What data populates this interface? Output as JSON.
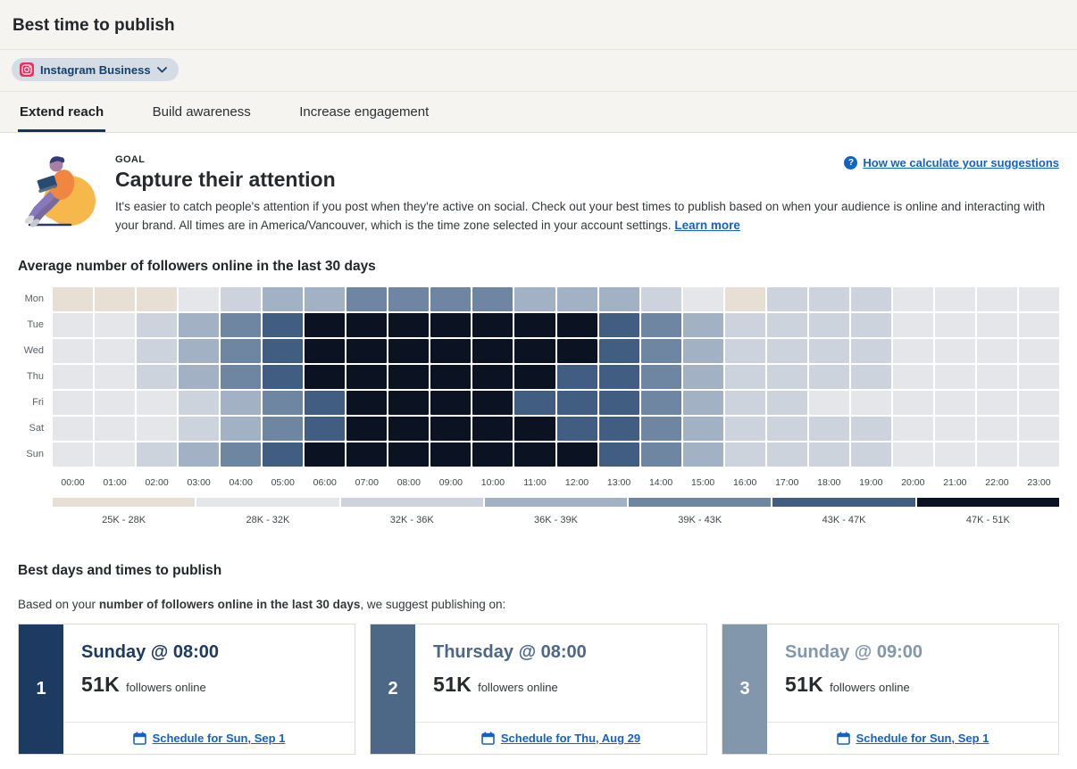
{
  "header": {
    "title": "Best time to publish"
  },
  "account_selector": {
    "label": "Instagram Business",
    "icon": "instagram-icon"
  },
  "tabs": [
    {
      "label": "Extend reach",
      "active": true
    },
    {
      "label": "Build awareness",
      "active": false
    },
    {
      "label": "Increase engagement",
      "active": false
    }
  ],
  "goal": {
    "eyebrow": "GOAL",
    "title": "Capture their attention",
    "description": "It's easier to catch people's attention if you post when they're active on social. Check out your best times to publish based on when your audience is online and interacting with your brand. All times are in America/Vancouver, which is the time zone selected in your account settings.",
    "learn_more_label": "Learn more",
    "help_link_label": "How we calculate your suggestions"
  },
  "chart_data": {
    "type": "heatmap",
    "title": "Average number of followers online in the last 30 days",
    "x_labels": [
      "00:00",
      "01:00",
      "02:00",
      "03:00",
      "04:00",
      "05:00",
      "06:00",
      "07:00",
      "08:00",
      "09:00",
      "10:00",
      "11:00",
      "12:00",
      "13:00",
      "14:00",
      "15:00",
      "16:00",
      "17:00",
      "18:00",
      "19:00",
      "20:00",
      "21:00",
      "22:00",
      "23:00"
    ],
    "y_labels": [
      "Mon",
      "Tue",
      "Wed",
      "Thu",
      "Fri",
      "Sat",
      "Sun"
    ],
    "legend_bins": [
      {
        "label": "25K - 28K",
        "color": "#e7dfd3"
      },
      {
        "label": "28K - 32K",
        "color": "#e4e6ea"
      },
      {
        "label": "32K - 36K",
        "color": "#ccd3dd"
      },
      {
        "label": "36K - 39K",
        "color": "#a2b1c4"
      },
      {
        "label": "39K - 43K",
        "color": "#6e86a2"
      },
      {
        "label": "43K - 47K",
        "color": "#415e82"
      },
      {
        "label": "47K - 51K",
        "color": "#0b1322"
      }
    ],
    "levels_note": "values are 1-7 bin indices into legend_bins, one row per day Mon-Sun, 24 hourly columns",
    "levels": [
      [
        1,
        1,
        1,
        2,
        3,
        4,
        4,
        5,
        5,
        5,
        5,
        4,
        4,
        4,
        3,
        2,
        1,
        3,
        3,
        3,
        2,
        2,
        2,
        2
      ],
      [
        2,
        2,
        3,
        4,
        5,
        6,
        7,
        7,
        7,
        7,
        7,
        7,
        7,
        6,
        5,
        4,
        3,
        3,
        3,
        3,
        2,
        2,
        2,
        2
      ],
      [
        2,
        2,
        3,
        4,
        5,
        6,
        7,
        7,
        7,
        7,
        7,
        7,
        7,
        6,
        5,
        4,
        3,
        3,
        3,
        3,
        2,
        2,
        2,
        2
      ],
      [
        2,
        2,
        3,
        4,
        5,
        6,
        7,
        7,
        7,
        7,
        7,
        7,
        6,
        6,
        5,
        4,
        3,
        3,
        3,
        3,
        2,
        2,
        2,
        2
      ],
      [
        2,
        2,
        2,
        3,
        4,
        5,
        6,
        7,
        7,
        7,
        7,
        6,
        6,
        6,
        5,
        4,
        3,
        3,
        2,
        2,
        2,
        2,
        2,
        2
      ],
      [
        2,
        2,
        2,
        3,
        4,
        5,
        6,
        7,
        7,
        7,
        7,
        7,
        6,
        6,
        5,
        4,
        3,
        3,
        3,
        3,
        2,
        2,
        2,
        2
      ],
      [
        2,
        2,
        3,
        4,
        5,
        6,
        7,
        7,
        7,
        7,
        7,
        7,
        7,
        6,
        5,
        4,
        3,
        3,
        3,
        3,
        2,
        2,
        2,
        2
      ]
    ]
  },
  "suggestions": {
    "heading": "Best days and times to publish",
    "intro_prefix": "Based on your ",
    "intro_bold": "number of followers online in the last 30 days",
    "intro_suffix": ", we suggest publishing on:",
    "cards": [
      {
        "rank": "1",
        "title": "Sunday @ 08:00",
        "metric_value": "51K",
        "metric_label": "followers online",
        "cta": "Schedule for Sun, Sep 1",
        "accent": "#1d3a60"
      },
      {
        "rank": "2",
        "title": "Thursday @ 08:00",
        "metric_value": "51K",
        "metric_label": "followers online",
        "cta": "Schedule for Thu, Aug 29",
        "accent": "#4d6787"
      },
      {
        "rank": "3",
        "title": "Sunday @ 09:00",
        "metric_value": "51K",
        "metric_label": "followers online",
        "cta": "Schedule for Sun, Sep 1",
        "accent": "#8296ac"
      }
    ]
  },
  "colors": {
    "link_blue": "#1562c6",
    "instagram_pink": "#ee2d5f",
    "active_tab_underline": "#13355c",
    "chrome_background": "#f5f4f0",
    "pill_background": "#d5dce4"
  }
}
